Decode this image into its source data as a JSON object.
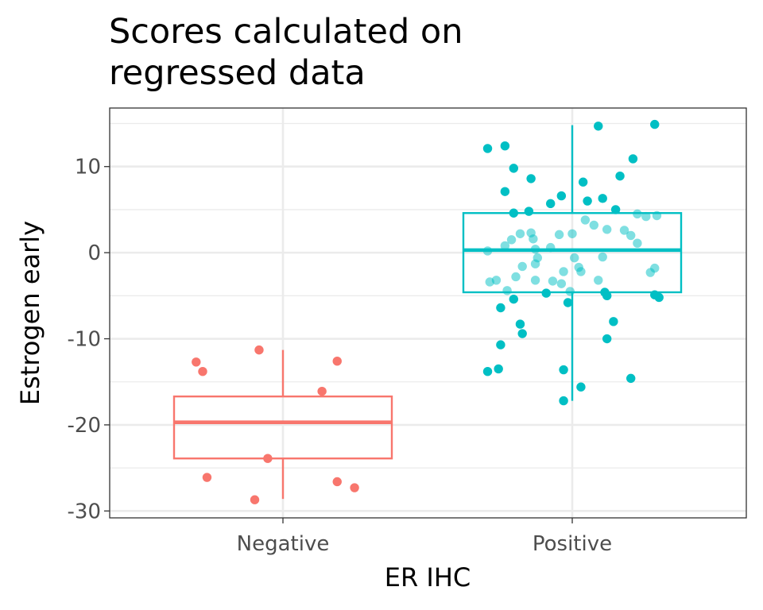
{
  "chart_data": {
    "type": "box",
    "title_lines": [
      "Scores calculated on",
      "regressed data"
    ],
    "xlabel": "ER IHC",
    "ylabel": "Estrogen early",
    "categories": [
      "Negative",
      "Positive"
    ],
    "y_ticks": [
      10,
      0,
      -10,
      -20,
      -30
    ],
    "y_tick_labels": [
      "10",
      "0",
      "-10",
      "-20",
      "-30"
    ],
    "ylim": [
      -30.8,
      16.8
    ],
    "grid": true,
    "legend": "none",
    "colors": {
      "Negative": "#F8766D",
      "Positive": "#00BFC4",
      "panel_border": "#333333",
      "grid": "#ebebeb"
    },
    "boxes": [
      {
        "group": "Negative",
        "whisker_low": -28.6,
        "q1": -23.9,
        "median": -19.7,
        "q3": -16.7,
        "whisker_high": -11.3
      },
      {
        "group": "Positive",
        "whisker_low": -17.2,
        "q1": -4.6,
        "median": 0.3,
        "q3": 4.6,
        "whisker_high": 14.8
      }
    ],
    "points": [
      {
        "group": "Negative",
        "jitter": -0.4,
        "y": -12.7
      },
      {
        "group": "Negative",
        "jitter": -0.37,
        "y": -13.8
      },
      {
        "group": "Negative",
        "jitter": -0.35,
        "y": -26.1
      },
      {
        "group": "Negative",
        "jitter": -0.11,
        "y": -11.3
      },
      {
        "group": "Negative",
        "jitter": -0.13,
        "y": -28.7
      },
      {
        "group": "Negative",
        "jitter": -0.07,
        "y": -23.9
      },
      {
        "group": "Negative",
        "jitter": 0.25,
        "y": -12.6
      },
      {
        "group": "Negative",
        "jitter": 0.18,
        "y": -16.1
      },
      {
        "group": "Negative",
        "jitter": 0.25,
        "y": -26.6
      },
      {
        "group": "Negative",
        "jitter": 0.33,
        "y": -27.3
      },
      {
        "group": "Positive",
        "jitter": -0.39,
        "y": 12.1
      },
      {
        "group": "Positive",
        "jitter": -0.31,
        "y": 12.4
      },
      {
        "group": "Positive",
        "jitter": -0.27,
        "y": 9.8
      },
      {
        "group": "Positive",
        "jitter": -0.31,
        "y": 7.1
      },
      {
        "group": "Positive",
        "jitter": -0.19,
        "y": 8.6
      },
      {
        "group": "Positive",
        "jitter": -0.2,
        "y": 4.8
      },
      {
        "group": "Positive",
        "jitter": -0.1,
        "y": 5.7
      },
      {
        "group": "Positive",
        "jitter": -0.05,
        "y": 6.6
      },
      {
        "group": "Positive",
        "jitter": 0.05,
        "y": 8.2
      },
      {
        "group": "Positive",
        "jitter": 0.12,
        "y": 14.7
      },
      {
        "group": "Positive",
        "jitter": 0.28,
        "y": 10.9
      },
      {
        "group": "Positive",
        "jitter": 0.38,
        "y": 14.9
      },
      {
        "group": "Positive",
        "jitter": 0.22,
        "y": 8.9
      },
      {
        "group": "Positive",
        "jitter": 0.14,
        "y": 6.3
      },
      {
        "group": "Positive",
        "jitter": 0.07,
        "y": 6.0
      },
      {
        "group": "Positive",
        "jitter": 0.2,
        "y": 5.0
      },
      {
        "group": "Positive",
        "jitter": 0.39,
        "y": 4.3
      },
      {
        "group": "Positive",
        "jitter": -0.39,
        "y": 0.2
      },
      {
        "group": "Positive",
        "jitter": -0.38,
        "y": -3.4
      },
      {
        "group": "Positive",
        "jitter": -0.33,
        "y": -6.4
      },
      {
        "group": "Positive",
        "jitter": -0.27,
        "y": -5.4
      },
      {
        "group": "Positive",
        "jitter": -0.24,
        "y": -8.3
      },
      {
        "group": "Positive",
        "jitter": -0.23,
        "y": -9.4
      },
      {
        "group": "Positive",
        "jitter": -0.33,
        "y": -10.7
      },
      {
        "group": "Positive",
        "jitter": -0.39,
        "y": -13.8
      },
      {
        "group": "Positive",
        "jitter": -0.34,
        "y": -13.5
      },
      {
        "group": "Positive",
        "jitter": -0.04,
        "y": -13.6
      },
      {
        "group": "Positive",
        "jitter": -0.04,
        "y": -17.2
      },
      {
        "group": "Positive",
        "jitter": 0.04,
        "y": -15.6
      },
      {
        "group": "Positive",
        "jitter": 0.16,
        "y": -10.0
      },
      {
        "group": "Positive",
        "jitter": 0.27,
        "y": -14.6
      },
      {
        "group": "Positive",
        "jitter": 0.19,
        "y": -8.0
      },
      {
        "group": "Positive",
        "jitter": 0.16,
        "y": -5.0
      },
      {
        "group": "Positive",
        "jitter": 0.38,
        "y": -4.9
      },
      {
        "group": "Positive",
        "jitter": 0.4,
        "y": -5.2
      },
      {
        "group": "Positive",
        "jitter": 0.38,
        "y": -1.8
      },
      {
        "group": "Positive",
        "jitter": -0.02,
        "y": -5.8
      },
      {
        "group": "Positive",
        "jitter": -0.12,
        "y": -4.7
      },
      {
        "group": "Positive",
        "jitter": -0.01,
        "y": -4.5
      },
      {
        "group": "Positive",
        "jitter": -0.31,
        "y": 0.8
      },
      {
        "group": "Positive",
        "jitter": -0.28,
        "y": 1.5
      },
      {
        "group": "Positive",
        "jitter": -0.24,
        "y": 2.2
      },
      {
        "group": "Positive",
        "jitter": -0.19,
        "y": 2.3
      },
      {
        "group": "Positive",
        "jitter": -0.18,
        "y": 1.6
      },
      {
        "group": "Positive",
        "jitter": -0.1,
        "y": 0.6
      },
      {
        "group": "Positive",
        "jitter": -0.06,
        "y": 2.1
      },
      {
        "group": "Positive",
        "jitter": 0.0,
        "y": 2.2
      },
      {
        "group": "Positive",
        "jitter": 0.06,
        "y": 3.8
      },
      {
        "group": "Positive",
        "jitter": 0.1,
        "y": 3.2
      },
      {
        "group": "Positive",
        "jitter": 0.16,
        "y": 2.7
      },
      {
        "group": "Positive",
        "jitter": 0.24,
        "y": 2.6
      },
      {
        "group": "Positive",
        "jitter": 0.27,
        "y": 2.0
      },
      {
        "group": "Positive",
        "jitter": 0.3,
        "y": 1.1
      },
      {
        "group": "Positive",
        "jitter": 0.3,
        "y": 4.5
      },
      {
        "group": "Positive",
        "jitter": 0.34,
        "y": 4.2
      },
      {
        "group": "Positive",
        "jitter": -0.27,
        "y": 4.6
      },
      {
        "group": "Positive",
        "jitter": -0.17,
        "y": 0.4
      },
      {
        "group": "Positive",
        "jitter": -0.17,
        "y": -1.3
      },
      {
        "group": "Positive",
        "jitter": -0.16,
        "y": -0.6
      },
      {
        "group": "Positive",
        "jitter": -0.23,
        "y": -1.6
      },
      {
        "group": "Positive",
        "jitter": -0.26,
        "y": -2.8
      },
      {
        "group": "Positive",
        "jitter": -0.35,
        "y": -3.2
      },
      {
        "group": "Positive",
        "jitter": -0.3,
        "y": -4.4
      },
      {
        "group": "Positive",
        "jitter": -0.17,
        "y": -3.2
      },
      {
        "group": "Positive",
        "jitter": -0.09,
        "y": -3.3
      },
      {
        "group": "Positive",
        "jitter": -0.05,
        "y": -3.6
      },
      {
        "group": "Positive",
        "jitter": -0.04,
        "y": -2.2
      },
      {
        "group": "Positive",
        "jitter": 0.01,
        "y": -0.6
      },
      {
        "group": "Positive",
        "jitter": 0.03,
        "y": -1.7
      },
      {
        "group": "Positive",
        "jitter": 0.04,
        "y": -2.2
      },
      {
        "group": "Positive",
        "jitter": 0.12,
        "y": -3.2
      },
      {
        "group": "Positive",
        "jitter": 0.15,
        "y": -4.6
      },
      {
        "group": "Positive",
        "jitter": 0.14,
        "y": -0.5
      },
      {
        "group": "Positive",
        "jitter": 0.36,
        "y": -2.3
      }
    ]
  }
}
